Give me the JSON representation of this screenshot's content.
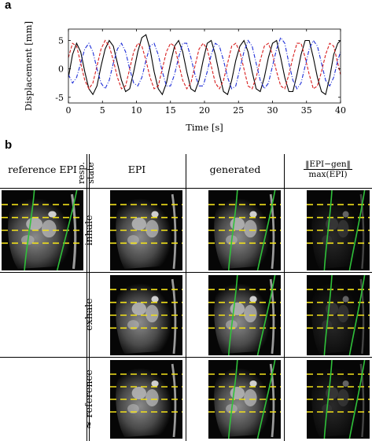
{
  "panel_a": {
    "letter": "a"
  },
  "panel_b": {
    "letter": "b"
  },
  "chart_data": {
    "type": "line",
    "xlabel": "Time [s]",
    "ylabel": "Displacement [mm]",
    "xlim": [
      0,
      40
    ],
    "ylim": [
      -6,
      7
    ],
    "xticks": [
      0,
      5,
      10,
      15,
      20,
      25,
      30,
      35,
      40
    ],
    "yticks": [
      -5,
      0,
      5
    ],
    "grid": false,
    "series": [
      {
        "color": "#000000",
        "style": "solid",
        "x": [
          0,
          0.6,
          1.2,
          1.8,
          2.4,
          3.0,
          3.6,
          4.2,
          4.8,
          5.4,
          6.0,
          6.6,
          7.2,
          7.8,
          8.4,
          9.0,
          9.6,
          10.2,
          10.8,
          11.4,
          12.0,
          12.6,
          13.2,
          13.8,
          14.4,
          15.0,
          15.6,
          16.2,
          16.8,
          17.4,
          18.0,
          18.6,
          19.2,
          19.8,
          20.4,
          21.0,
          21.6,
          22.2,
          22.8,
          23.4,
          24.0,
          24.6,
          25.2,
          25.8,
          26.4,
          27.0,
          27.6,
          28.2,
          28.8,
          29.4,
          30.0,
          30.6,
          31.2,
          31.8,
          32.4,
          33.0,
          33.6,
          34.2,
          34.8,
          35.4,
          36.0,
          36.6,
          37.2,
          37.8,
          38.4,
          39.0,
          39.6,
          40.0
        ],
        "y": [
          -1.5,
          2.5,
          4.5,
          3.0,
          -0.5,
          -3.5,
          -4.5,
          -3.0,
          0.5,
          3.5,
          5.0,
          4.0,
          1.0,
          -2.0,
          -4.0,
          -3.5,
          -0.5,
          3.0,
          5.5,
          6.0,
          3.5,
          -0.5,
          -3.5,
          -4.5,
          -2.5,
          1.0,
          4.0,
          5.0,
          3.0,
          -0.5,
          -3.5,
          -4.0,
          -2.0,
          1.5,
          4.5,
          5.0,
          2.5,
          -1.0,
          -4.0,
          -4.5,
          -2.0,
          1.5,
          4.0,
          5.0,
          3.0,
          -0.5,
          -3.5,
          -4.0,
          -1.5,
          2.0,
          4.5,
          5.0,
          2.0,
          -1.5,
          -4.0,
          -4.0,
          -1.0,
          2.5,
          5.0,
          5.0,
          2.0,
          -1.5,
          -4.0,
          -4.5,
          -1.5,
          2.5,
          4.5,
          5.0
        ]
      },
      {
        "color": "#d81e1e",
        "style": "dashed",
        "x": [
          0,
          0.6,
          1.2,
          1.8,
          2.4,
          3.0,
          3.6,
          4.2,
          4.8,
          5.4,
          6.0,
          6.6,
          7.2,
          7.8,
          8.4,
          9.0,
          9.6,
          10.2,
          10.8,
          11.4,
          12.0,
          12.6,
          13.2,
          13.8,
          14.4,
          15.0,
          15.6,
          16.2,
          16.8,
          17.4,
          18.0,
          18.6,
          19.2,
          19.8,
          20.4,
          21.0,
          21.6,
          22.2,
          22.8,
          23.4,
          24.0,
          24.6,
          25.2,
          25.8,
          26.4,
          27.0,
          27.6,
          28.2,
          28.8,
          29.4,
          30.0,
          30.6,
          31.2,
          31.8,
          32.4,
          33.0,
          33.6,
          34.2,
          34.8,
          35.4,
          36.0,
          36.6,
          37.2,
          37.8,
          38.4,
          39.0,
          39.6,
          40.0
        ],
        "y": [
          2.0,
          4.5,
          4.0,
          1.0,
          -2.0,
          -3.5,
          -2.5,
          0.5,
          3.5,
          5.0,
          4.0,
          1.5,
          -1.5,
          -3.5,
          -3.0,
          0.0,
          3.0,
          4.5,
          4.0,
          1.5,
          -1.5,
          -3.5,
          -3.0,
          0.0,
          3.0,
          4.5,
          4.0,
          1.0,
          -2.0,
          -3.5,
          -2.5,
          0.5,
          3.5,
          4.5,
          3.5,
          0.5,
          -2.5,
          -3.5,
          -2.0,
          1.0,
          4.0,
          4.5,
          3.0,
          0.0,
          -3.0,
          -3.5,
          -1.5,
          1.5,
          4.0,
          4.5,
          2.5,
          -0.5,
          -3.0,
          -3.5,
          -1.0,
          2.0,
          4.5,
          4.5,
          2.0,
          -1.0,
          -3.5,
          -3.0,
          -0.5,
          2.5,
          4.5,
          4.0,
          1.0,
          -1.0
        ]
      },
      {
        "color": "#1e2ed8",
        "style": "dashdot",
        "x": [
          0,
          0.6,
          1.2,
          1.8,
          2.4,
          3.0,
          3.6,
          4.2,
          4.8,
          5.4,
          6.0,
          6.6,
          7.2,
          7.8,
          8.4,
          9.0,
          9.6,
          10.2,
          10.8,
          11.4,
          12.0,
          12.6,
          13.2,
          13.8,
          14.4,
          15.0,
          15.6,
          16.2,
          16.8,
          17.4,
          18.0,
          18.6,
          19.2,
          19.8,
          20.4,
          21.0,
          21.6,
          22.2,
          22.8,
          23.4,
          24.0,
          24.6,
          25.2,
          25.8,
          26.4,
          27.0,
          27.6,
          28.2,
          28.8,
          29.4,
          30.0,
          30.6,
          31.2,
          31.8,
          32.4,
          33.0,
          33.6,
          34.2,
          34.8,
          35.4,
          36.0,
          36.6,
          37.2,
          37.8,
          38.4,
          39.0,
          39.6,
          40.0
        ],
        "y": [
          -1.0,
          -2.5,
          -1.5,
          1.0,
          3.5,
          4.5,
          3.0,
          0.0,
          -2.5,
          -3.5,
          -2.0,
          1.0,
          3.5,
          4.5,
          3.0,
          0.0,
          -2.5,
          -3.0,
          -1.5,
          1.5,
          4.0,
          4.5,
          2.5,
          -0.5,
          -3.0,
          -3.0,
          -1.0,
          2.0,
          4.5,
          4.5,
          2.0,
          -1.0,
          -3.0,
          -3.0,
          -0.5,
          2.5,
          4.5,
          4.0,
          1.5,
          -1.5,
          -3.5,
          -3.0,
          0.0,
          3.0,
          5.0,
          4.0,
          1.0,
          -2.0,
          -3.5,
          -2.5,
          0.5,
          3.5,
          5.5,
          4.5,
          1.0,
          -2.0,
          -3.5,
          -2.5,
          0.5,
          3.5,
          5.0,
          4.0,
          1.0,
          -2.0,
          -3.0,
          -1.5,
          1.5,
          3.0
        ]
      }
    ]
  },
  "table": {
    "headers": {
      "reference": "reference EPI",
      "resp_state": "resp. state",
      "epi": "EPI",
      "generated": "generated",
      "diff_num": "‖EPI−gen‖",
      "diff_den": "max(EPI)"
    },
    "rows": [
      {
        "state": "inhale"
      },
      {
        "state": "exhale"
      },
      {
        "state": "≈ reference"
      }
    ]
  },
  "colors": {
    "guide_line": "#f2e11a",
    "contour": "#2fc13a",
    "red": "#d81e1e",
    "blue": "#1e2ed8"
  }
}
